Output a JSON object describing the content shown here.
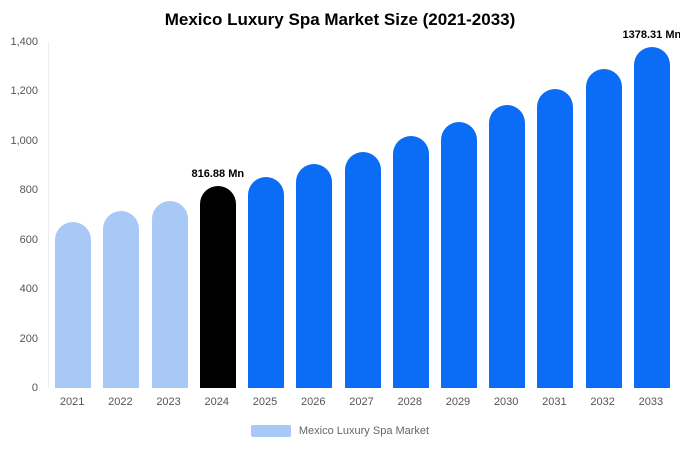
{
  "chart_data": {
    "type": "bar",
    "title": "Mexico Luxury Spa Market Size (2021-2033)",
    "xlabel": "",
    "ylabel": "",
    "categories": [
      "2021",
      "2022",
      "2023",
      "2024",
      "2025",
      "2026",
      "2027",
      "2028",
      "2029",
      "2030",
      "2031",
      "2032",
      "2033"
    ],
    "values": [
      670,
      715,
      758,
      816.88,
      855,
      905,
      955,
      1020,
      1075,
      1145,
      1210,
      1290,
      1378.31
    ],
    "colors": [
      "#a8c8f5",
      "#a8c8f5",
      "#a8c8f5",
      "#000000",
      "#0b6cf5",
      "#0b6cf5",
      "#0b6cf5",
      "#0b6cf5",
      "#0b6cf5",
      "#0b6cf5",
      "#0b6cf5",
      "#0b6cf5",
      "#0b6cf5"
    ],
    "ylim": [
      0,
      1400
    ],
    "ytick_labels": [
      "0",
      "200",
      "400",
      "600",
      "800",
      "1,000",
      "1,200",
      "1,400"
    ],
    "ytick_values": [
      0,
      200,
      400,
      600,
      800,
      1000,
      1200,
      1400
    ],
    "grid": false,
    "legend_position": "bottom",
    "annotations": [
      {
        "category": "2024",
        "text": "816.88 Mn"
      },
      {
        "category": "2033",
        "text": "1378.31 Mn"
      }
    ],
    "legend": [
      {
        "label": "Mexico Luxury Spa Market",
        "color": "#a8c8f5"
      }
    ]
  }
}
